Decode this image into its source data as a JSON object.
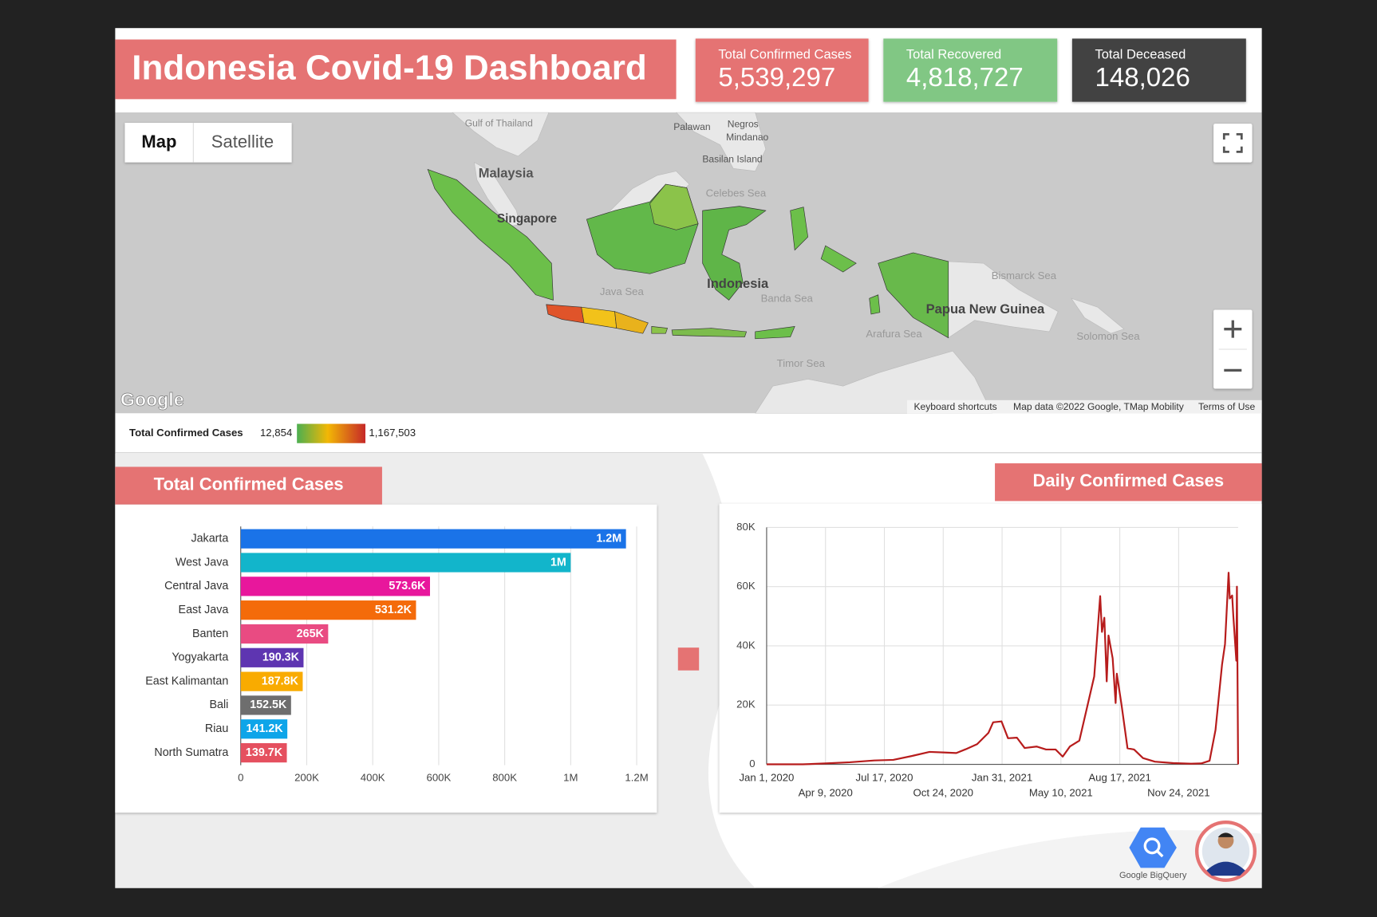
{
  "header": {
    "title": "Indonesia Covid-19 Dashboard"
  },
  "kpis": [
    {
      "label": "Total Confirmed Cases",
      "value": "5,539,297"
    },
    {
      "label": "Total Recovered",
      "value": "4,818,727"
    },
    {
      "label": "Total Deceased",
      "value": "148,026"
    }
  ],
  "map": {
    "controls": [
      "Map",
      "Satellite"
    ],
    "labels": [
      "Gulf of Thailand",
      "Palawan",
      "Negros",
      "Mindanao",
      "Basilan Island",
      "Celebes Sea",
      "Malaysia",
      "Singapore",
      "Java Sea",
      "Indonesia",
      "Banda Sea",
      "Bismarck Sea",
      "Papua New Guinea",
      "Arafura Sea",
      "Solomon Sea",
      "Timor Sea"
    ],
    "logo": "Google",
    "attribution": [
      "Keyboard shortcuts",
      "Map data ©2022 Google, TMap Mobility",
      "Terms of Use"
    ],
    "legend": {
      "title": "Total Confirmed Cases",
      "min": "12,854",
      "max": "1,167,503"
    }
  },
  "chart_data": [
    {
      "type": "bar",
      "orientation": "horizontal",
      "title": "Total Confirmed Cases",
      "categories": [
        "Jakarta",
        "West Java",
        "Central Java",
        "East Java",
        "Banten",
        "Yogyakarta",
        "East Kalimantan",
        "Bali",
        "Riau",
        "North Sumatra"
      ],
      "values": [
        1167503,
        1000000,
        573600,
        531200,
        265000,
        190300,
        187800,
        152500,
        141200,
        139700
      ],
      "value_labels": [
        "1.2M",
        "1M",
        "573.6K",
        "531.2K",
        "265K",
        "190.3K",
        "187.8K",
        "152.5K",
        "141.2K",
        "139.7K"
      ],
      "colors": [
        "#1a73e8",
        "#12b5cb",
        "#e8179c",
        "#f46b0a",
        "#e94b82",
        "#5e35b1",
        "#f9ab00",
        "#6e6e6e",
        "#0ea5e9",
        "#e5505f"
      ],
      "xlim": [
        0,
        1200000
      ],
      "xticks": [
        0,
        {
          "value": 200000,
          "label": "200K"
        },
        {
          "value": 400000,
          "label": "400K"
        },
        {
          "value": 600000,
          "label": "600K"
        },
        {
          "value": 800000,
          "label": "800K"
        },
        {
          "value": 1000000,
          "label": "1M"
        },
        {
          "value": 1200000,
          "label": "1.2M"
        }
      ],
      "grid": true
    },
    {
      "type": "line",
      "title": "Daily Confirmed Cases",
      "color": "#b71c1c",
      "x": [
        "2020-01-01",
        "2020-03-02",
        "2020-04-09",
        "2020-05-20",
        "2020-06-30",
        "2020-08-01",
        "2020-09-01",
        "2020-10-01",
        "2020-10-24",
        "2020-11-15",
        "2020-12-01",
        "2020-12-20",
        "2021-01-08",
        "2021-01-16",
        "2021-01-30",
        "2021-02-10",
        "2021-02-25",
        "2021-03-10",
        "2021-03-30",
        "2021-04-15",
        "2021-05-01",
        "2021-05-13",
        "2021-05-25",
        "2021-06-10",
        "2021-06-25",
        "2021-07-05",
        "2021-07-15",
        "2021-07-18",
        "2021-07-22",
        "2021-07-26",
        "2021-07-29",
        "2021-08-05",
        "2021-08-10",
        "2021-08-12",
        "2021-08-20",
        "2021-08-30",
        "2021-09-10",
        "2021-09-25",
        "2021-10-15",
        "2021-11-15",
        "2021-12-15",
        "2022-01-01",
        "2022-01-15",
        "2022-01-25",
        "2022-02-05",
        "2022-02-10",
        "2022-02-16",
        "2022-02-18",
        "2022-02-22",
        "2022-02-24",
        "2022-02-26",
        "2022-03-01",
        "2022-03-02",
        "2022-03-04"
      ],
      "values": [
        0,
        2,
        300,
        700,
        1300,
        1500,
        2800,
        4200,
        4000,
        3800,
        5100,
        6800,
        10600,
        14200,
        14500,
        8800,
        9000,
        5500,
        6000,
        5000,
        5000,
        2600,
        6000,
        8000,
        21000,
        29700,
        56800,
        44700,
        49500,
        28000,
        43500,
        35800,
        20700,
        30600,
        20000,
        5400,
        5000,
        2100,
        900,
        400,
        200,
        300,
        1200,
        11600,
        33700,
        40600,
        64700,
        56000,
        57000,
        50000,
        44000,
        35000,
        60000,
        0
      ],
      "xlim": [
        "2020-01-01",
        "2022-03-04"
      ],
      "xticks": [
        {
          "value": "2020-01-01",
          "label": "Jan 1, 2020"
        },
        {
          "value": "2020-04-09",
          "label": "Apr 9, 2020"
        },
        {
          "value": "2020-07-17",
          "label": "Jul 17, 2020"
        },
        {
          "value": "2020-10-24",
          "label": "Oct 24, 2020"
        },
        {
          "value": "2021-01-31",
          "label": "Jan 31, 2021"
        },
        {
          "value": "2021-05-10",
          "label": "May 10, 2021"
        },
        {
          "value": "2021-08-17",
          "label": "Aug 17, 2021"
        },
        {
          "value": "2021-11-24",
          "label": "Nov 24, 2021"
        }
      ],
      "ylim": [
        0,
        80000
      ],
      "yticks": [
        0,
        {
          "value": 20000,
          "label": "20K"
        },
        {
          "value": 40000,
          "label": "40K"
        },
        {
          "value": 60000,
          "label": "60K"
        },
        {
          "value": 80000,
          "label": "80K"
        }
      ],
      "grid": true
    }
  ],
  "footer": {
    "logo_caption": "Google BigQuery"
  }
}
